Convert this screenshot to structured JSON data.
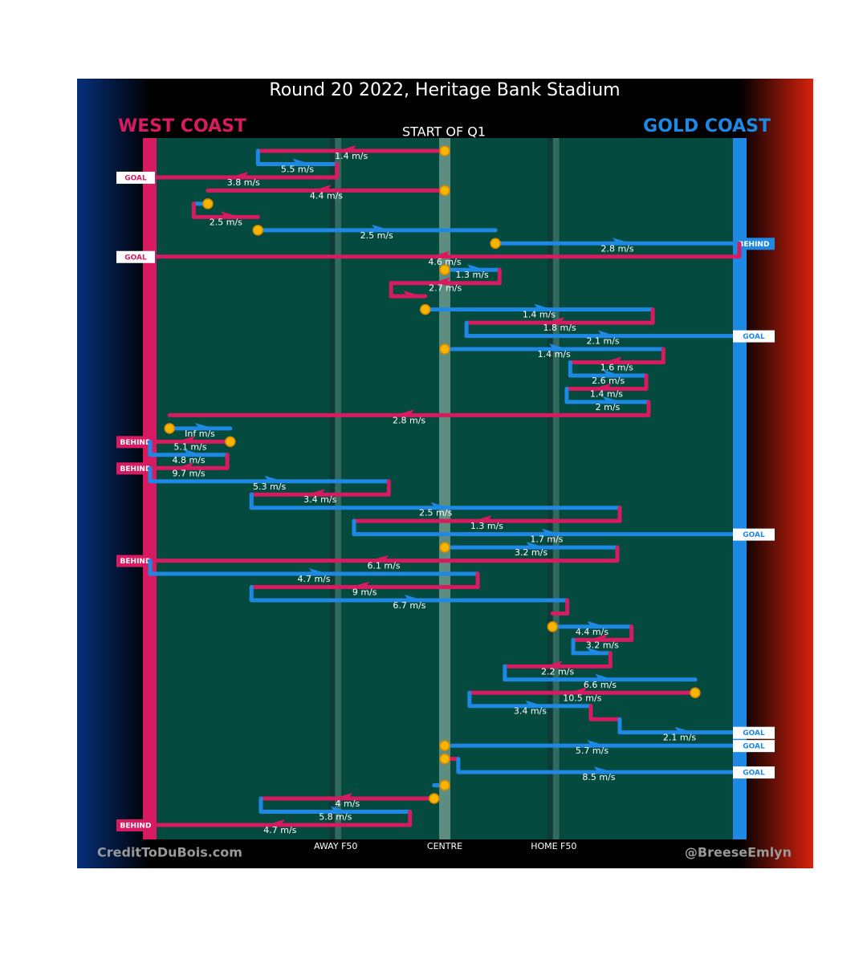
{
  "chart_data": {
    "type": "possession-chain",
    "title": "Round 20 2022, Heritage Bank Stadium",
    "subtitle": "START OF Q1",
    "teams": [
      {
        "name": "WEST COAST",
        "color": "#d81b60"
      },
      {
        "name": "GOLD COAST",
        "color": "#1e88e5"
      }
    ],
    "xlim": [
      0,
      100
    ],
    "xticks": [
      {
        "value": 31.5,
        "label": "AWAY F50"
      },
      {
        "value": 50,
        "label": "CENTRE"
      },
      {
        "value": 68.5,
        "label": "HOME F50"
      }
    ],
    "credit_left": "CreditToDuBois.com",
    "credit_right": "@BreeseEmlyn",
    "moves": [
      {
        "team": 0,
        "from": 50,
        "to": 18.3,
        "speed": "1.4 m/s",
        "stoppage": true
      },
      {
        "team": 1,
        "from": 18.3,
        "to": 31.7,
        "speed": "5.5 m/s"
      },
      {
        "team": 0,
        "from": 31.7,
        "to": 0,
        "speed": "3.8 m/s",
        "outcome": "GOAL"
      },
      {
        "team": 0,
        "from": 50,
        "to": 9.8,
        "speed": "4.4 m/s",
        "stoppage": true
      },
      {
        "team": 1,
        "from": 9.8,
        "to": 7.4,
        "stoppage": true
      },
      {
        "team": 0,
        "from": 7.4,
        "to": 18.3,
        "speed": "2.5 m/s"
      },
      {
        "team": 1,
        "from": 18.3,
        "to": 58.6,
        "speed": "2.5 m/s",
        "stoppage": true
      },
      {
        "team": 1,
        "from": 58.6,
        "to": 100,
        "speed": "2.8 m/s",
        "stoppage": true,
        "outcome": "BEHIND"
      },
      {
        "team": 0,
        "from": 100,
        "to": 0,
        "speed": "4.6 m/s",
        "outcome": "GOAL"
      },
      {
        "team": 1,
        "from": 50,
        "to": 59.3,
        "speed": "1.3 m/s",
        "stoppage": true
      },
      {
        "team": 0,
        "from": 59.3,
        "to": 40.9,
        "speed": "2.7 m/s"
      },
      {
        "team": 0,
        "from": 40.9,
        "to": 46.7
      },
      {
        "team": 1,
        "from": 46.7,
        "to": 85.3,
        "speed": "1.4 m/s",
        "stoppage": true
      },
      {
        "team": 0,
        "from": 85.3,
        "to": 53.7,
        "speed": "1.8 m/s"
      },
      {
        "team": 1,
        "from": 53.7,
        "to": 100,
        "speed": "2.1 m/s",
        "outcome": "GOAL"
      },
      {
        "team": 1,
        "from": 50,
        "to": 87.1,
        "speed": "1.4 m/s",
        "stoppage": true
      },
      {
        "team": 0,
        "from": 87.1,
        "to": 71.3,
        "speed": "1.6 m/s"
      },
      {
        "team": 1,
        "from": 71.3,
        "to": 84.2,
        "speed": "2.6 m/s"
      },
      {
        "team": 0,
        "from": 84.2,
        "to": 70.7,
        "speed": "1.4 m/s"
      },
      {
        "team": 1,
        "from": 70.7,
        "to": 84.6,
        "speed": "2 m/s"
      },
      {
        "team": 0,
        "from": 84.6,
        "to": 3.3,
        "speed": "2.8 m/s"
      },
      {
        "team": 1,
        "from": 3.3,
        "to": 13.6,
        "speed": "Inf m/s",
        "stoppage": true
      },
      {
        "team": 0,
        "from": 13.6,
        "to": 0,
        "speed": "5.1 m/s",
        "stoppage": true,
        "outcome": "BEHIND"
      },
      {
        "team": 1,
        "from": 0,
        "to": 13.1,
        "speed": "4.8 m/s"
      },
      {
        "team": 0,
        "from": 13.1,
        "to": 0,
        "speed": "9.7 m/s",
        "outcome": "BEHIND"
      },
      {
        "team": 1,
        "from": 0,
        "to": 40.5,
        "speed": "5.3 m/s"
      },
      {
        "team": 0,
        "from": 40.5,
        "to": 17.2,
        "speed": "3.4 m/s"
      },
      {
        "team": 1,
        "from": 17.2,
        "to": 79.7,
        "speed": "2.5 m/s"
      },
      {
        "team": 0,
        "from": 79.7,
        "to": 34.6,
        "speed": "1.3 m/s"
      },
      {
        "team": 1,
        "from": 34.6,
        "to": 100,
        "speed": "1.7 m/s",
        "outcome": "GOAL"
      },
      {
        "team": 1,
        "from": 50,
        "to": 79.3,
        "speed": "3.2 m/s",
        "stoppage": true
      },
      {
        "team": 0,
        "from": 79.3,
        "to": 0,
        "speed": "6.1 m/s",
        "outcome": "BEHIND"
      },
      {
        "team": 1,
        "from": 0,
        "to": 55.6,
        "speed": "4.7 m/s"
      },
      {
        "team": 0,
        "from": 55.6,
        "to": 17.2,
        "speed": "9 m/s"
      },
      {
        "team": 1,
        "from": 17.2,
        "to": 70.8,
        "speed": "6.7 m/s"
      },
      {
        "team": 0,
        "from": 70.8,
        "to": 68.3
      },
      {
        "team": 1,
        "from": 68.3,
        "to": 81.7,
        "speed": "4.4 m/s",
        "stoppage": true
      },
      {
        "team": 0,
        "from": 81.7,
        "to": 71.8,
        "speed": "3.2 m/s"
      },
      {
        "team": 1,
        "from": 71.8,
        "to": 78.1
      },
      {
        "team": 0,
        "from": 78.1,
        "to": 60.2,
        "speed": "2.2 m/s"
      },
      {
        "team": 1,
        "from": 60.2,
        "to": 92.5,
        "speed": "6.6 m/s"
      },
      {
        "team": 0,
        "from": 92.5,
        "to": 54.2,
        "speed": "10.5 m/s",
        "stoppage": true
      },
      {
        "team": 1,
        "from": 54.2,
        "to": 74.8,
        "speed": "3.4 m/s"
      },
      {
        "team": 0,
        "from": 74.8,
        "to": 79.7
      },
      {
        "team": 1,
        "from": 79.7,
        "to": 100,
        "speed": "2.1 m/s",
        "outcome": "GOAL"
      },
      {
        "team": 1,
        "from": 50,
        "to": 100,
        "speed": "5.7 m/s",
        "stoppage": true,
        "outcome": "GOAL"
      },
      {
        "team": 0,
        "from": 50,
        "to": 52.3,
        "stoppage": true
      },
      {
        "team": 1,
        "from": 52.3,
        "to": 100,
        "speed": "8.5 m/s",
        "outcome": "GOAL"
      },
      {
        "team": 1,
        "from": 50,
        "to": 48.2,
        "stoppage": true
      },
      {
        "team": 0,
        "from": 48.2,
        "to": 18.8,
        "speed": "4 m/s",
        "stoppage": true
      },
      {
        "team": 1,
        "from": 18.8,
        "to": 44.1,
        "speed": "5.8 m/s"
      },
      {
        "team": 0,
        "from": 44.1,
        "to": 0,
        "speed": "4.7 m/s",
        "outcome": "BEHIND"
      }
    ]
  }
}
